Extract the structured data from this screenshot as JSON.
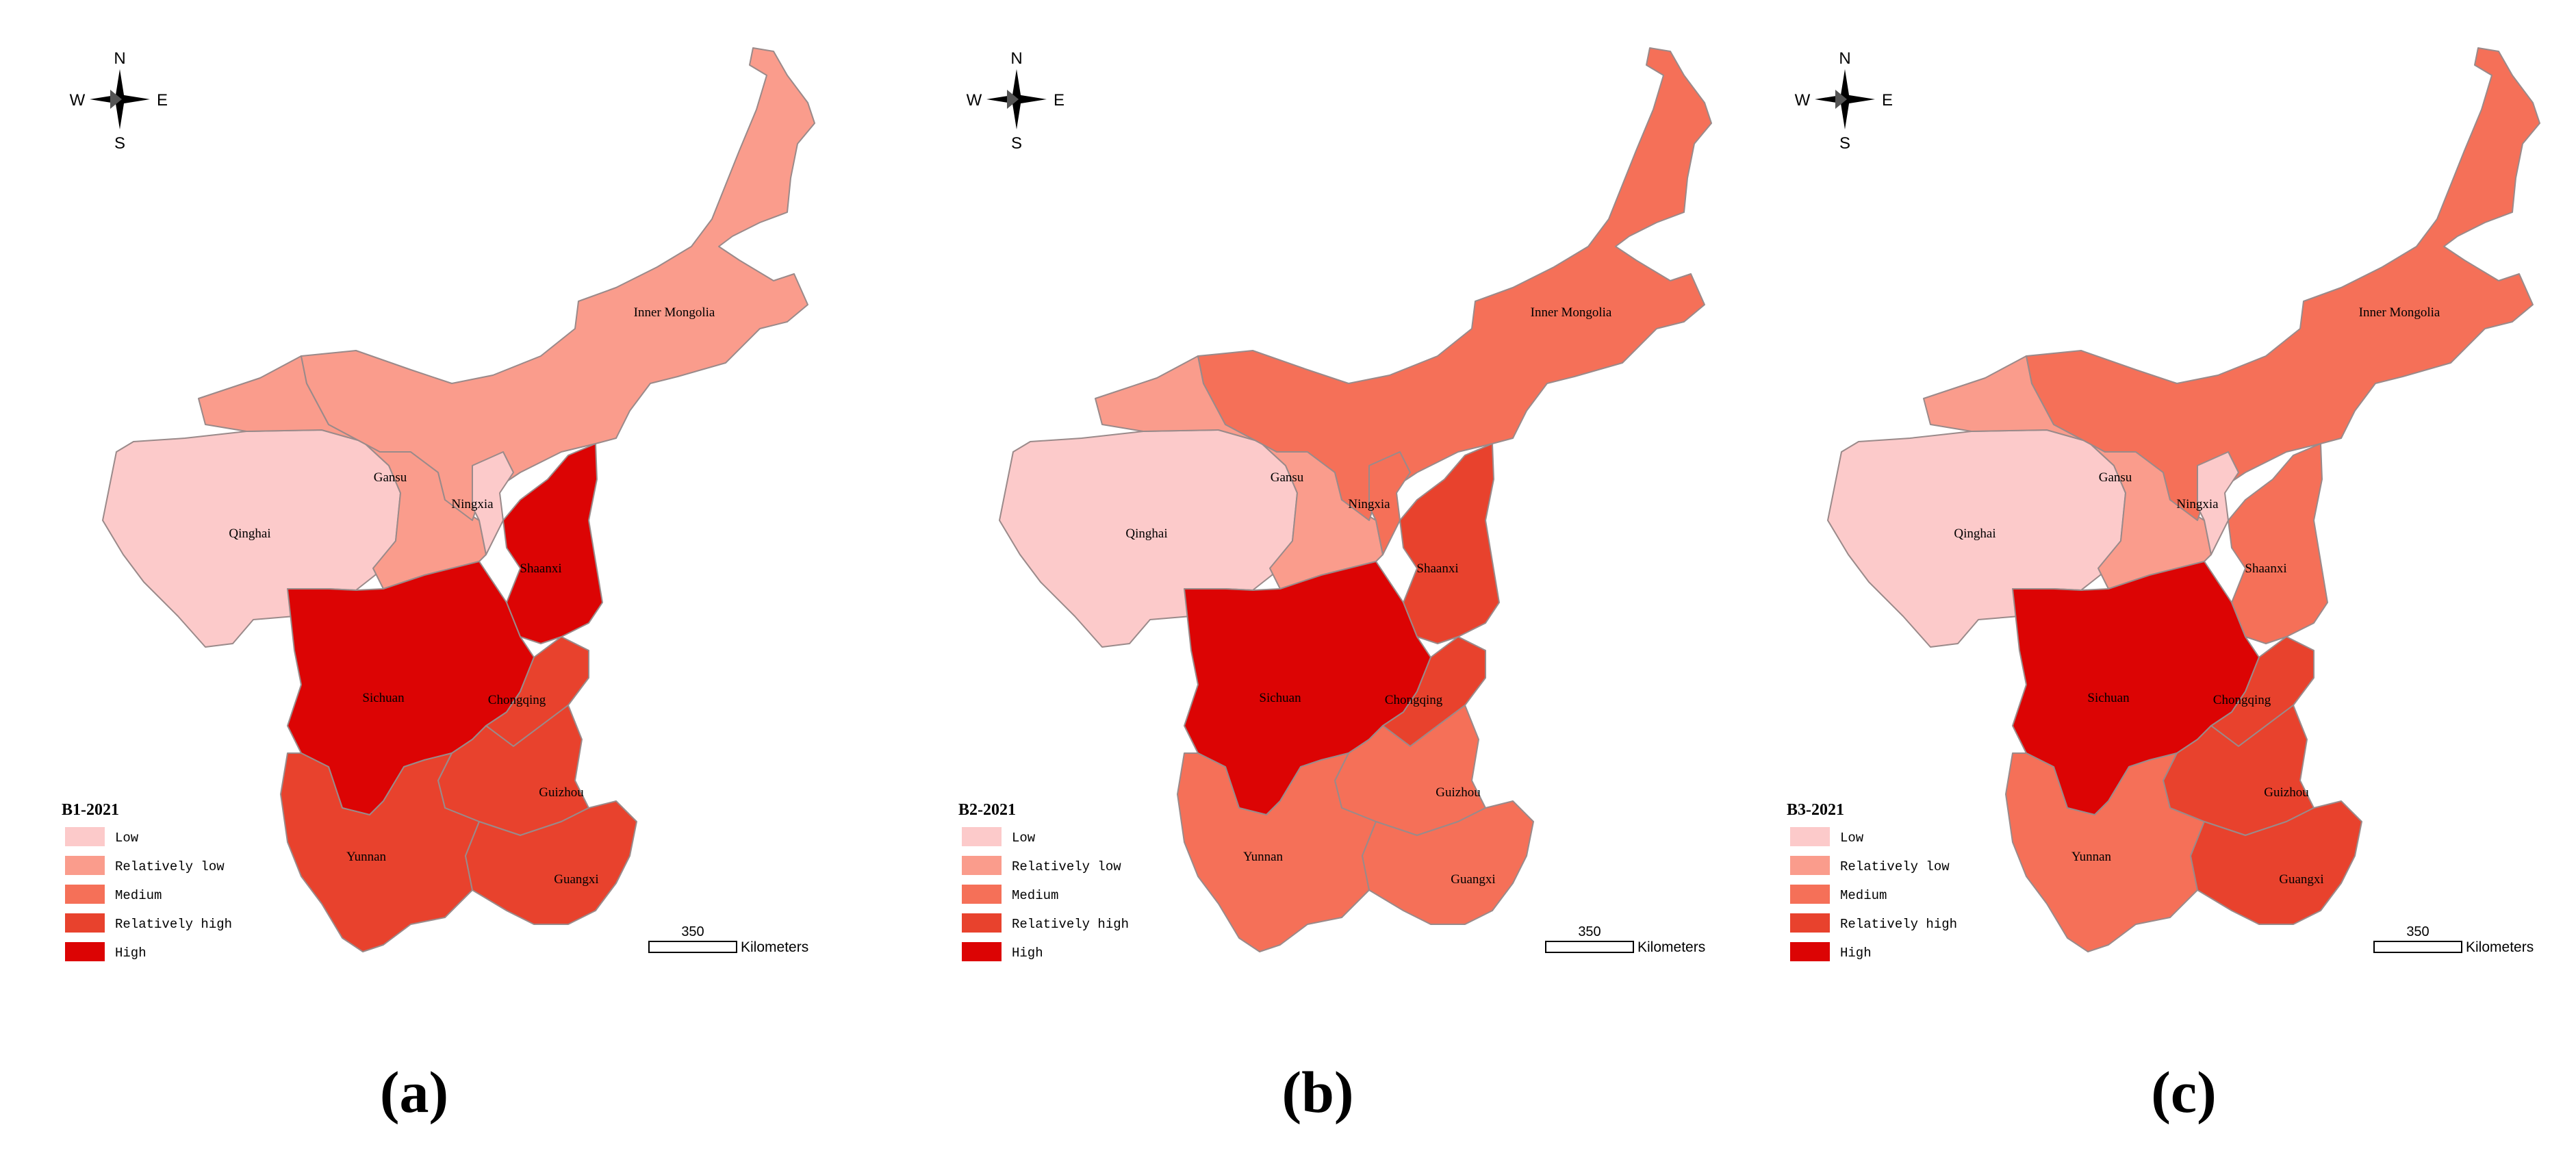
{
  "legend_classes": [
    {
      "key": "low",
      "label": "Low",
      "color": "#fccaca"
    },
    {
      "key": "rlow",
      "label": "Relatively low",
      "color": "#fa9c8c"
    },
    {
      "key": "med",
      "label": "Medium",
      "color": "#f57058"
    },
    {
      "key": "rhigh",
      "label": "Relatively high",
      "color": "#e8422d"
    },
    {
      "key": "high",
      "label": "High",
      "color": "#dc0404"
    }
  ],
  "compass": {
    "n": "N",
    "s": "S",
    "e": "E",
    "w": "W"
  },
  "scale_bar": {
    "value": "350",
    "unit": "Kilometers"
  },
  "panels": [
    {
      "id": "a",
      "label": "(a)",
      "legend_title": "B1-2021",
      "regions": {
        "Inner Mongolia": "rlow",
        "Qinghai": "low",
        "Gansu": "rlow",
        "Ningxia": "low",
        "Shaanxi": "high",
        "Sichuan": "high",
        "Chongqing": "rhigh",
        "Guizhou": "rhigh",
        "Yunnan": "rhigh",
        "Guangxi": "rhigh"
      }
    },
    {
      "id": "b",
      "label": "(b)",
      "legend_title": "B2-2021",
      "regions": {
        "Inner Mongolia": "med",
        "Qinghai": "low",
        "Gansu": "rlow",
        "Ningxia": "med",
        "Shaanxi": "rhigh",
        "Sichuan": "high",
        "Chongqing": "rhigh",
        "Guizhou": "med",
        "Yunnan": "med",
        "Guangxi": "med"
      }
    },
    {
      "id": "c",
      "label": "(c)",
      "legend_title": "B3-2021",
      "regions": {
        "Inner Mongolia": "med",
        "Qinghai": "low",
        "Gansu": "rlow",
        "Ningxia": "low",
        "Shaanxi": "med",
        "Sichuan": "high",
        "Chongqing": "rhigh",
        "Guizhou": "rhigh",
        "Yunnan": "med",
        "Guangxi": "rhigh"
      }
    }
  ]
}
